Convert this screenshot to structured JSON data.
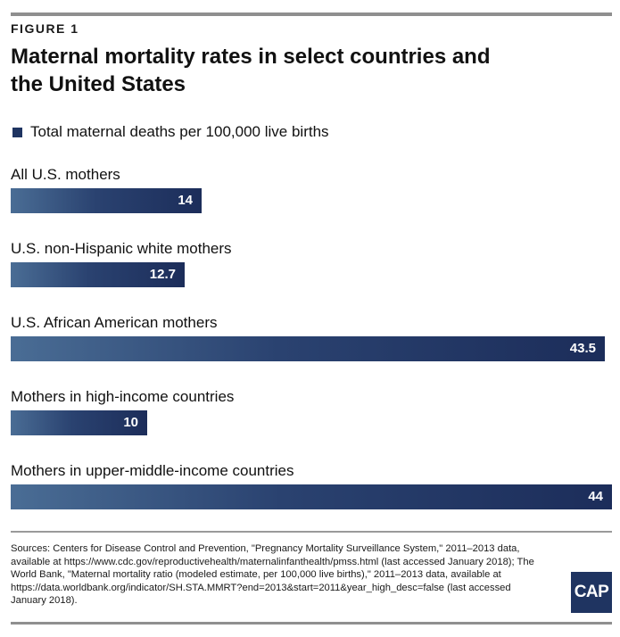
{
  "figure_label": "FIGURE 1",
  "title": "Maternal mortality rates in select countries and the United States",
  "legend": {
    "label": "Total maternal deaths per 100,000 live births",
    "color": "#1f3461"
  },
  "chart_data": {
    "type": "bar",
    "orientation": "horizontal",
    "categories": [
      "All U.S. mothers",
      "U.S. non-Hispanic white mothers",
      "U.S. African American mothers",
      "Mothers in high-income countries",
      "Mothers in upper-middle-income countries"
    ],
    "series": [
      {
        "name": "Total maternal deaths per 100,000 live births",
        "values": [
          14,
          12.7,
          43.5,
          10,
          44
        ]
      }
    ],
    "value_labels": [
      "14",
      "12.7",
      "43.5",
      "10",
      "44"
    ],
    "xlim": [
      0,
      44
    ],
    "grid": false,
    "legend_position": "top-left"
  },
  "sources": "Sources: Centers for Disease Control and Prevention, \"Pregnancy Mortality Surveillance System,\" 2011–2013 data, available at https://www.cdc.gov/reproductivehealth/maternalinfanthealth/pmss.html (last accessed January 2018); The World Bank, \"Maternal mortality ratio (modeled estimate, per 100,000 live births),\" 2011–2013 data, available at https://data.worldbank.org/indicator/SH.STA.MMRT?end=2013&start=2011&year_high_desc=false (last accessed January 2018).",
  "logo_text": "CAP"
}
